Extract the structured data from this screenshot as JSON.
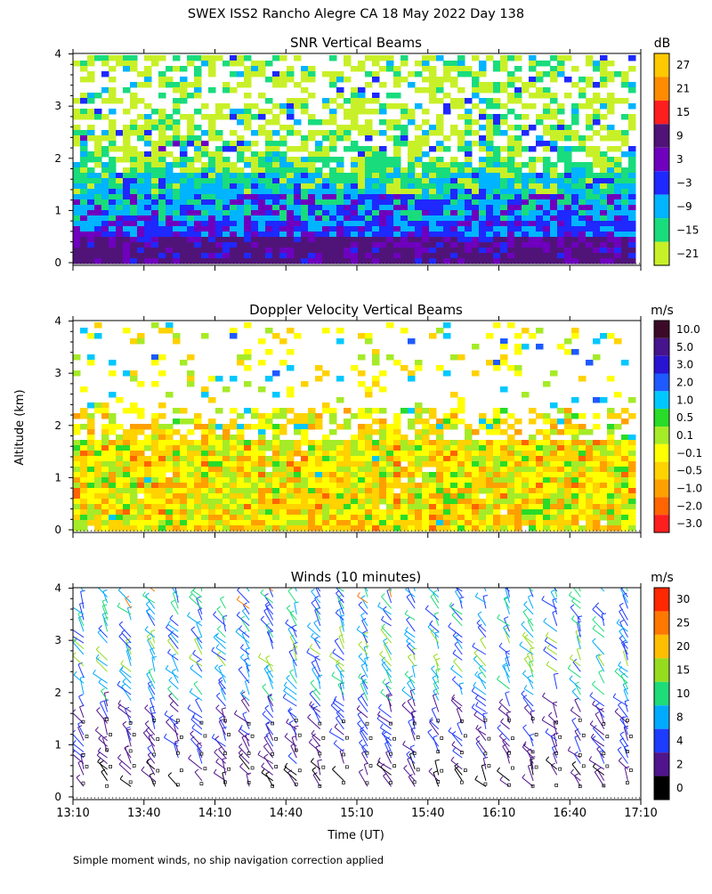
{
  "title": "SWEX ISS2 Rancho Alegre CA  18 May 2022 Day 138",
  "ylabel": "Altitude (km)",
  "xlabel": "Time (UT)",
  "footnote": "Simple moment winds, no ship navigation correction applied",
  "chart_data": [
    {
      "type": "heatmap",
      "title": "SNR Vertical Beams",
      "colorbar_unit": "dB",
      "x_ticks": [
        "13:10",
        "13:40",
        "14:10",
        "14:40",
        "15:10",
        "15:40",
        "16:10",
        "16:40",
        "17:10"
      ],
      "y_ticks": [
        "0",
        "1",
        "2",
        "3",
        "4"
      ],
      "xlim": [
        "13:10",
        "17:10"
      ],
      "ylim": [
        0,
        4
      ],
      "colorbar_labels": [
        "27",
        "21",
        "15",
        "9",
        "3",
        "−3",
        "−9",
        "−15",
        "−21"
      ],
      "colorbar_colors": [
        "#ffc800",
        "#ff8c00",
        "#ff1e1e",
        "#501478",
        "#6e00be",
        "#1e28ff",
        "#00b4ff",
        "#19dc7d",
        "#c8f028"
      ]
    },
    {
      "type": "heatmap",
      "title": "Doppler Velocity Vertical Beams",
      "colorbar_unit": "m/s",
      "x_ticks": [
        "13:10",
        "13:40",
        "14:10",
        "14:40",
        "15:10",
        "15:40",
        "16:10",
        "16:40",
        "17:10"
      ],
      "y_ticks": [
        "0",
        "1",
        "2",
        "3",
        "4"
      ],
      "xlim": [
        "13:10",
        "17:10"
      ],
      "ylim": [
        0,
        4
      ],
      "colorbar_labels": [
        "10.0",
        "5.0",
        "3.0",
        "2.0",
        "1.0",
        "0.5",
        "0.1",
        "−0.1",
        "−0.5",
        "−1.0",
        "−2.0",
        "−3.0"
      ],
      "colorbar_colors": [
        "#3c0a28",
        "#46148c",
        "#2814d2",
        "#1e5aff",
        "#00c8ff",
        "#28dc28",
        "#a5eb28",
        "#ffff00",
        "#ffd200",
        "#ffa000",
        "#ff6400",
        "#ff1e1e"
      ]
    },
    {
      "type": "scatter",
      "title": "Winds (10 minutes)",
      "colorbar_unit": "m/s",
      "x_ticks": [
        "13:10",
        "13:40",
        "14:10",
        "14:40",
        "15:10",
        "15:40",
        "16:10",
        "16:40",
        "17:10"
      ],
      "y_ticks": [
        "0",
        "1",
        "2",
        "3",
        "4"
      ],
      "xlim": [
        "13:10",
        "17:10"
      ],
      "ylim": [
        0,
        4
      ],
      "colorbar_labels": [
        "30",
        "25",
        "20",
        "15",
        "10",
        "8",
        "4",
        "2",
        "0"
      ],
      "colorbar_colors": [
        "#ff2800",
        "#ff7800",
        "#ffbe00",
        "#96dc1e",
        "#1edc78",
        "#00aaff",
        "#1e3cff",
        "#50148c",
        "#000000"
      ]
    }
  ]
}
